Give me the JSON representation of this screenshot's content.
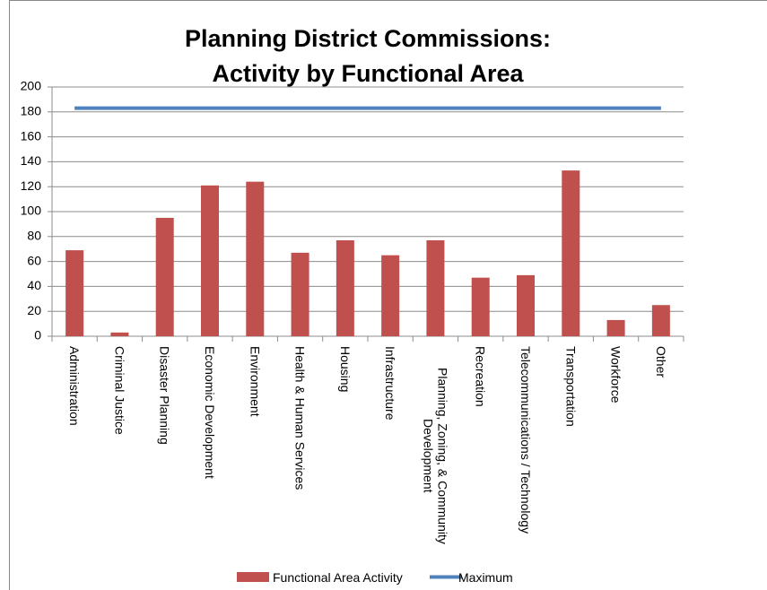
{
  "chart_data": {
    "type": "bar",
    "title": "Planning District Commissions:\nActivity by Functional Area",
    "categories": [
      "Administration",
      "Criminal Justice",
      "Disaster Planning",
      "Economic Development",
      "Environment",
      "Health & Human Services",
      "Housing",
      "Infrastructure",
      "Planning, Zoning, & Community Development",
      "Recreation",
      "Telecommunications / Technology",
      "Transportation",
      "Workforce",
      "Other"
    ],
    "series": [
      {
        "name": "Functional Area Activity",
        "type": "bar",
        "color": "#c0504d",
        "values": [
          69,
          3,
          95,
          121,
          124,
          67,
          77,
          65,
          77,
          47,
          49,
          133,
          13,
          25
        ]
      },
      {
        "name": "Maximum",
        "type": "line",
        "color": "#4f81bd",
        "values": [
          183,
          183,
          183,
          183,
          183,
          183,
          183,
          183,
          183,
          183,
          183,
          183,
          183,
          183
        ]
      }
    ],
    "ylim": [
      0,
      200
    ],
    "yticks": [
      0,
      20,
      40,
      60,
      80,
      100,
      120,
      140,
      160,
      180,
      200
    ],
    "grid": true,
    "legend": "bottom"
  }
}
